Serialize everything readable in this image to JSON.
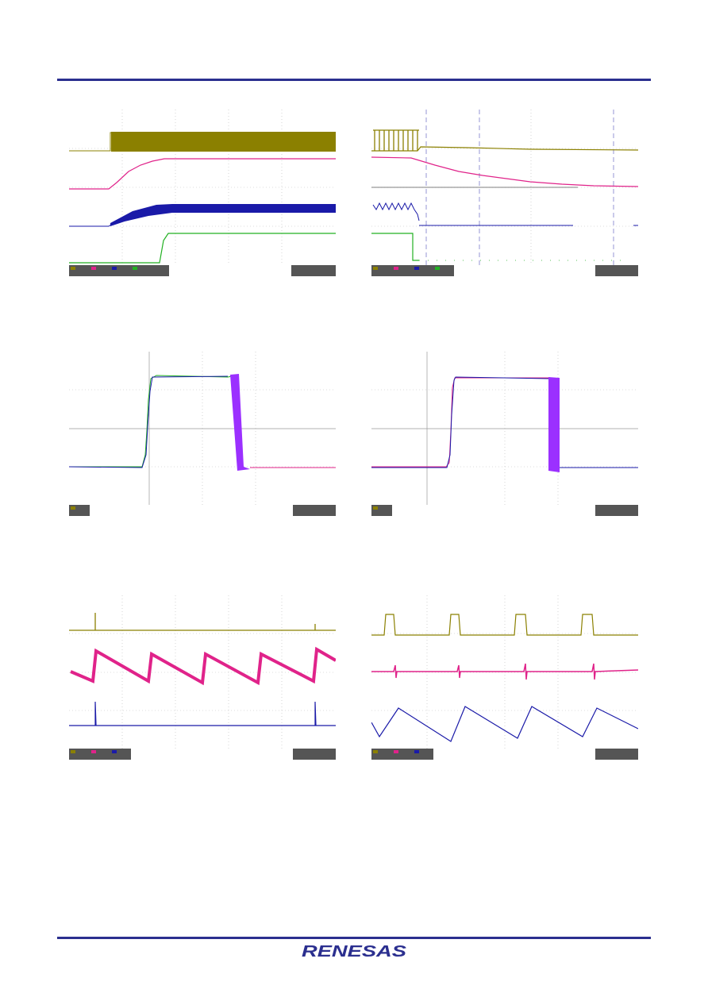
{
  "document": {
    "footer_logo_text": "RENESAS"
  },
  "colors": {
    "rule": "#2b2f8f",
    "ch1": "#8b8000",
    "ch2": "#e0238a",
    "ch3": "#1a1aa8",
    "ch4": "#22b022",
    "overlay": "#9b30ff"
  },
  "figures": [
    {
      "id": "startup",
      "channels": [
        "ch1",
        "ch2",
        "ch3",
        "ch4"
      ]
    },
    {
      "id": "shutdown",
      "channels": [
        "ch1",
        "ch2",
        "ch3",
        "ch4"
      ]
    },
    {
      "id": "pulse-overlay-a",
      "channels": [
        "overlay"
      ]
    },
    {
      "id": "pulse-overlay-b",
      "channels": [
        "overlay"
      ]
    },
    {
      "id": "ripple-a",
      "channels": [
        "ch1",
        "ch2",
        "ch3"
      ]
    },
    {
      "id": "ripple-b",
      "channels": [
        "ch1",
        "ch2",
        "ch3"
      ]
    }
  ]
}
